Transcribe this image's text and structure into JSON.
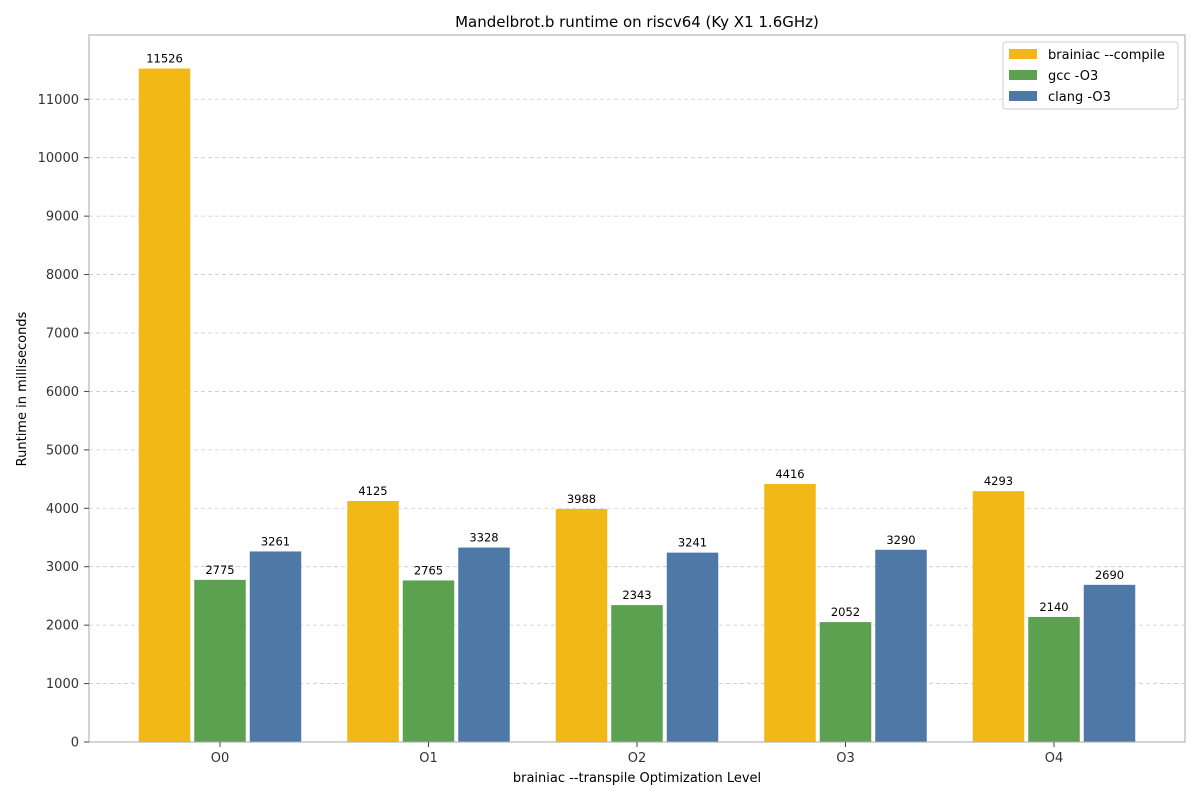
{
  "chart_data": {
    "type": "bar",
    "title": "Mandelbrot.b runtime on riscv64 (Ky X1 1.6GHz)",
    "xlabel": "brainiac --transpile Optimization Level",
    "ylabel": "Runtime in milliseconds",
    "categories": [
      "O0",
      "O1",
      "O2",
      "O3",
      "O4"
    ],
    "series": [
      {
        "name": "brainiac --compile",
        "color": "#f2b816",
        "values": [
          11526,
          4125,
          3988,
          4416,
          4293
        ]
      },
      {
        "name": "gcc -O3",
        "color": "#5ba14f",
        "values": [
          2775,
          2765,
          2343,
          2052,
          2140
        ]
      },
      {
        "name": "clang -O3",
        "color": "#4e79a7",
        "values": [
          3261,
          3328,
          3241,
          3290,
          2690
        ]
      }
    ],
    "ylim": [
      0,
      12100
    ],
    "yticks": [
      0,
      1000,
      2000,
      3000,
      4000,
      5000,
      6000,
      7000,
      8000,
      9000,
      10000,
      11000
    ],
    "grid": true,
    "legend_position": "top-right"
  }
}
